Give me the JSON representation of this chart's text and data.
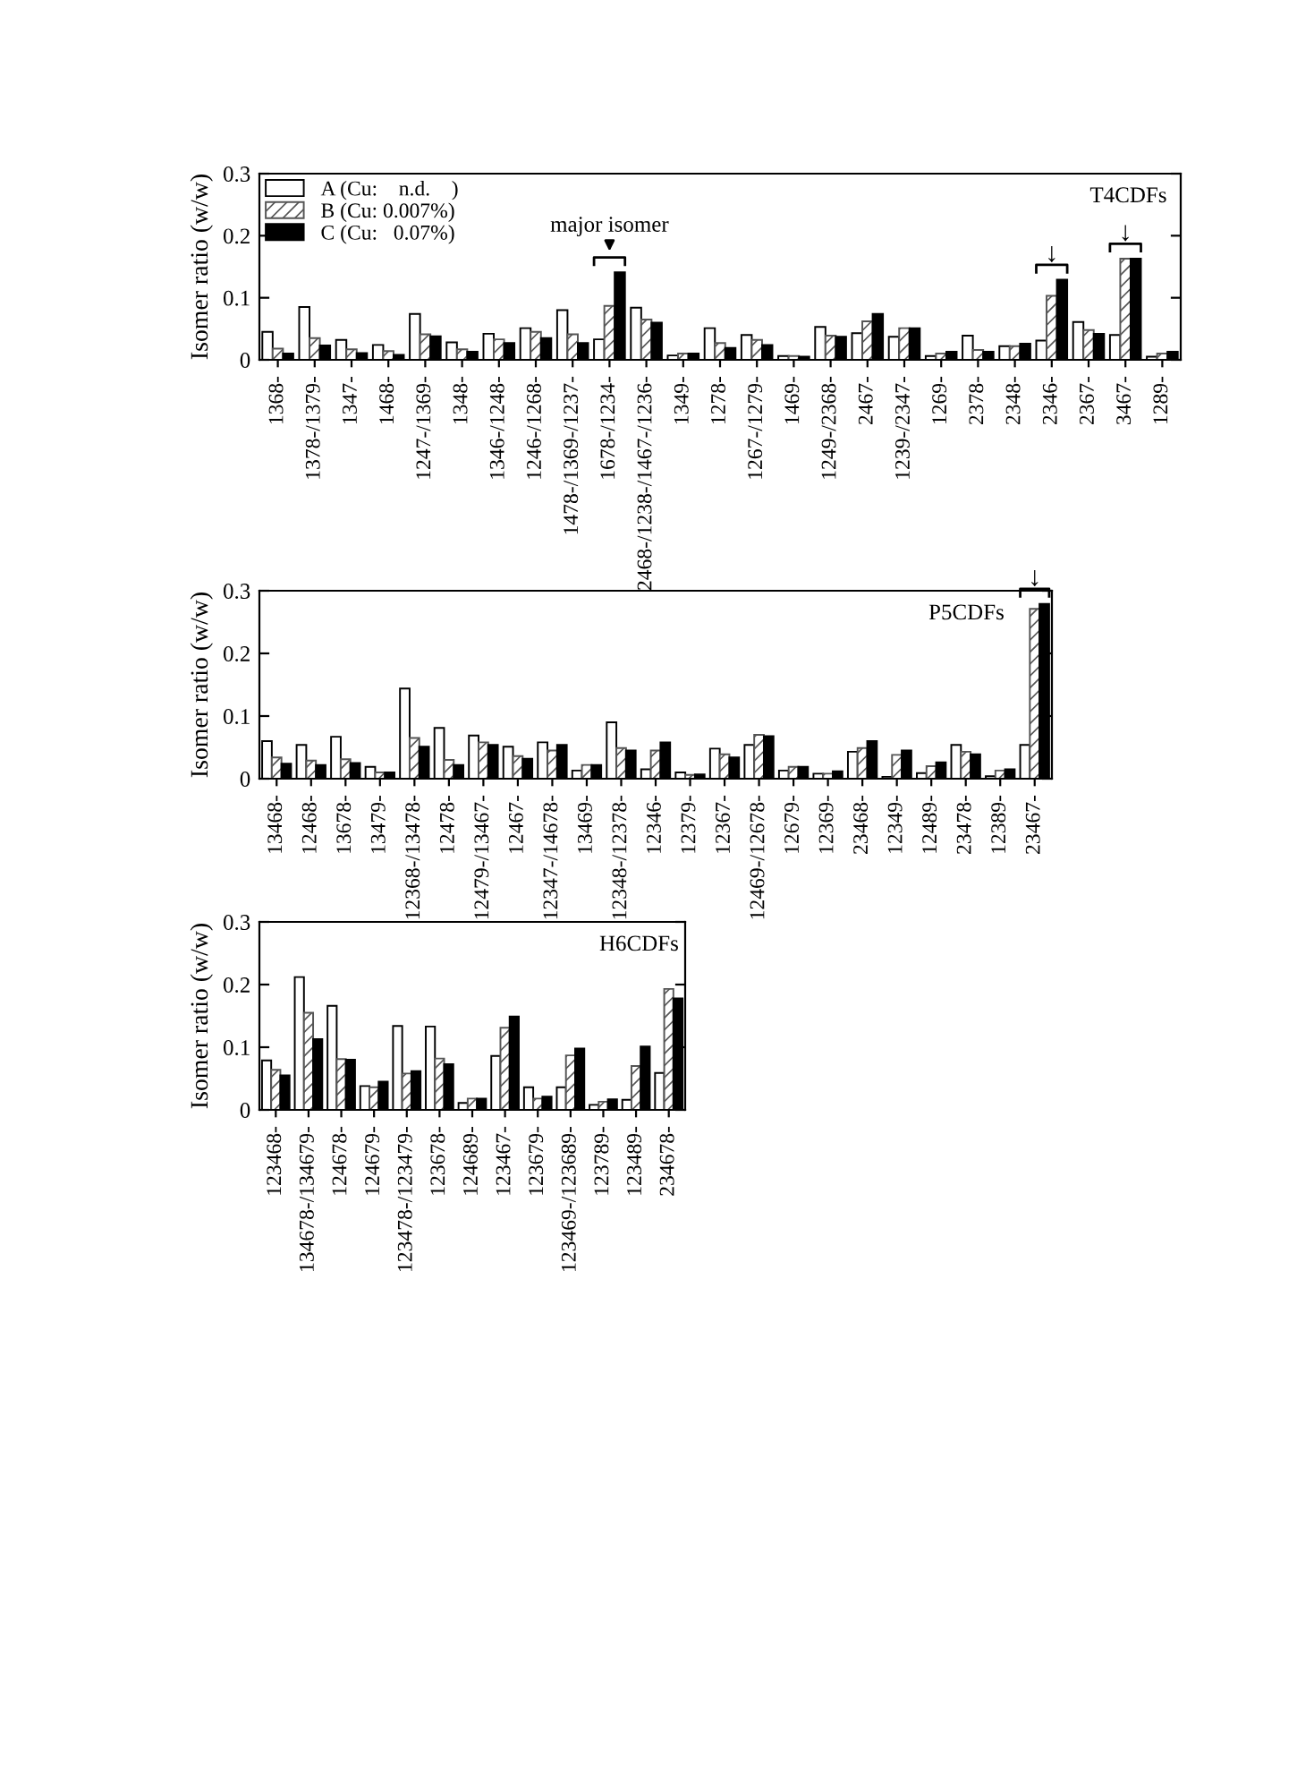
{
  "chart_data": [
    {
      "type": "bar",
      "ylabel": "Isomer ratio (w/w)",
      "ylim": [
        0,
        0.3
      ],
      "yticks": [
        0,
        0.1,
        0.2,
        0.3
      ],
      "legend": "top left",
      "grid": false,
      "categories": [
        "1368-",
        "1378-/1379-",
        "1347-",
        "1468-",
        "1247-/1369-",
        "1348-",
        "1346-/1248-",
        "1246-/1268-",
        "1478-/1369-/1237-",
        "1678-/1234-",
        "2468-/1238-/1467-/1236-",
        "1349-",
        "1278-",
        "1267-/1279-",
        "1469-",
        "1249-/2368-",
        "2467-",
        "1239-/2347-",
        "1269-",
        "2378-",
        "2348-",
        "2346-",
        "2367-",
        "3467-",
        "1289-"
      ],
      "series": [
        {
          "name": "A (Cu:    n.d.    )",
          "color": "#ffffff",
          "values": [
            0.045,
            0.085,
            0.032,
            0.024,
            0.074,
            0.028,
            0.042,
            0.051,
            0.08,
            0.033,
            0.084,
            0.007,
            0.051,
            0.04,
            0.006,
            0.053,
            0.043,
            0.037,
            0.006,
            0.039,
            0.022,
            0.031,
            0.061,
            0.04,
            0.005
          ]
        },
        {
          "name": "B (Cu: 0.007%)",
          "color": "#555555",
          "values": [
            0.018,
            0.035,
            0.017,
            0.014,
            0.041,
            0.017,
            0.033,
            0.045,
            0.041,
            0.087,
            0.065,
            0.01,
            0.027,
            0.032,
            0.006,
            0.039,
            0.062,
            0.051,
            0.01,
            0.016,
            0.022,
            0.103,
            0.048,
            0.163,
            0.01
          ]
        },
        {
          "name": "C (Cu:   0.07%)",
          "color": "#000000",
          "values": [
            0.01,
            0.023,
            0.011,
            0.008,
            0.038,
            0.013,
            0.027,
            0.035,
            0.027,
            0.141,
            0.06,
            0.01,
            0.019,
            0.024,
            0.005,
            0.037,
            0.074,
            0.051,
            0.013,
            0.013,
            0.026,
            0.129,
            0.042,
            0.163,
            0.013
          ]
        }
      ],
      "annotations": [
        "T4CDFs",
        {
          "text": "major isomer",
          "x": "1678-/1234-",
          "y": 0.141
        },
        {
          "text": "↓",
          "x": "2346-",
          "y": 0.129
        },
        {
          "text": "↓",
          "x": "3467-",
          "y": 0.163
        }
      ]
    },
    {
      "type": "bar",
      "ylabel": "Isomer ratio (w/w)",
      "ylim": [
        0,
        0.3
      ],
      "yticks": [
        0,
        0.1,
        0.2,
        0.3
      ],
      "grid": false,
      "categories": [
        "13468-",
        "12468-",
        "13678-",
        "13479-",
        "12368-/13478-",
        "12478-",
        "12479-/13467-",
        "12467-",
        "12347-/14678-",
        "13469-",
        "12348-/12378-",
        "12346-",
        "12379-",
        "12367-",
        "12469-/12678-",
        "12679-",
        "12369-",
        "23468-",
        "12349-",
        "12489-",
        "23478-",
        "12389-",
        "23467-"
      ],
      "series": [
        {
          "color": "#ffffff",
          "values": [
            0.06,
            0.054,
            0.067,
            0.019,
            0.144,
            0.081,
            0.069,
            0.051,
            0.058,
            0.013,
            0.09,
            0.015,
            0.01,
            0.048,
            0.054,
            0.013,
            0.008,
            0.043,
            0.003,
            0.009,
            0.054,
            0.004,
            0.054
          ]
        },
        {
          "color": "#555555",
          "values": [
            0.034,
            0.029,
            0.031,
            0.01,
            0.065,
            0.03,
            0.058,
            0.036,
            0.045,
            0.022,
            0.049,
            0.045,
            0.006,
            0.039,
            0.07,
            0.019,
            0.008,
            0.049,
            0.038,
            0.02,
            0.043,
            0.013,
            0.271
          ]
        },
        {
          "color": "#000000",
          "values": [
            0.024,
            0.022,
            0.025,
            0.01,
            0.051,
            0.022,
            0.054,
            0.032,
            0.054,
            0.022,
            0.045,
            0.058,
            0.007,
            0.034,
            0.068,
            0.019,
            0.012,
            0.06,
            0.045,
            0.026,
            0.039,
            0.015,
            0.279
          ]
        }
      ],
      "annotations": [
        "P5CDFs",
        {
          "text": "↓",
          "x": "23467-",
          "y": 0.279
        }
      ]
    },
    {
      "type": "bar",
      "ylabel": "Isomer ratio (w/w)",
      "ylim": [
        0,
        0.3
      ],
      "yticks": [
        0,
        0.1,
        0.2,
        0.3
      ],
      "grid": false,
      "categories": [
        "123468-",
        "134678-/134679-",
        "124678-",
        "124679-",
        "123478-/123479-",
        "123678-",
        "124689-",
        "123467-",
        "123679-",
        "123469-/123689-",
        "123789-",
        "123489-",
        "234678-"
      ],
      "series": [
        {
          "color": "#ffffff",
          "values": [
            0.079,
            0.212,
            0.166,
            0.038,
            0.134,
            0.133,
            0.011,
            0.086,
            0.036,
            0.036,
            0.008,
            0.016,
            0.059
          ]
        },
        {
          "color": "#555555",
          "values": [
            0.064,
            0.155,
            0.081,
            0.036,
            0.058,
            0.082,
            0.018,
            0.131,
            0.018,
            0.087,
            0.013,
            0.07,
            0.193
          ]
        },
        {
          "color": "#000000",
          "values": [
            0.055,
            0.113,
            0.08,
            0.045,
            0.062,
            0.073,
            0.018,
            0.149,
            0.021,
            0.098,
            0.017,
            0.101,
            0.178
          ]
        }
      ],
      "annotations": [
        "H6CDFs"
      ]
    }
  ]
}
